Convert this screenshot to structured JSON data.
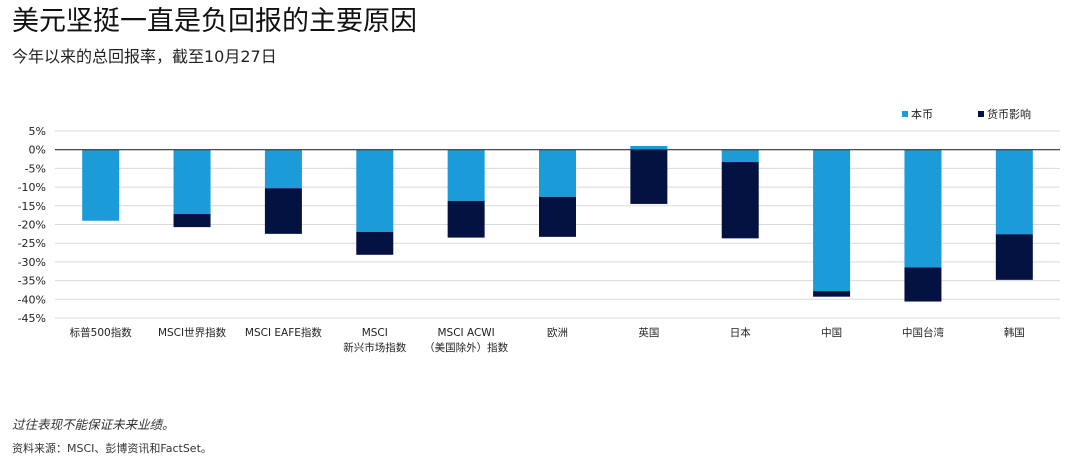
{
  "title": "美元坚挺一直是负回报的主要原因",
  "subtitle": "今年以来的总回报率，截至10月27日",
  "footnote": "过往表现不能保证未来业绩。",
  "source": "资料来源：MSCI、彭博资讯和FactSet。",
  "colors": {
    "local": "#1b9bd7",
    "currency": "#041241",
    "grid": "#d9d9d9",
    "axis": "#333333"
  },
  "chart_data": {
    "type": "bar",
    "stacked": true,
    "categories": [
      [
        "标普500指数"
      ],
      [
        "MSCI世界指数"
      ],
      [
        "MSCI EAFE指数"
      ],
      [
        "MSCI",
        "新兴市场指数"
      ],
      [
        "MSCI ACWI",
        "（美国除外）指数"
      ],
      [
        "欧洲"
      ],
      [
        "英国"
      ],
      [
        "日本"
      ],
      [
        "中国"
      ],
      [
        "中国台湾"
      ],
      [
        "韩国"
      ]
    ],
    "series": [
      {
        "name": "本币",
        "values": [
          -19,
          -17.2,
          -10.3,
          -22,
          -13.7,
          -12.6,
          1,
          -3.3,
          -37.8,
          -31.5,
          -22.6
        ]
      },
      {
        "name": "货币影响",
        "values": [
          0,
          -3.5,
          -12.2,
          -6.1,
          -9.8,
          -10.7,
          -14.5,
          -20.4,
          -1.5,
          -9.1,
          -12.2
        ]
      }
    ],
    "ylim": [
      -45,
      5
    ],
    "yticks": [
      5,
      0,
      -5,
      -10,
      -15,
      -20,
      -25,
      -30,
      -35,
      -40,
      -45
    ],
    "ytick_suffix": "%",
    "grid": true,
    "legend_position": "top-right"
  }
}
